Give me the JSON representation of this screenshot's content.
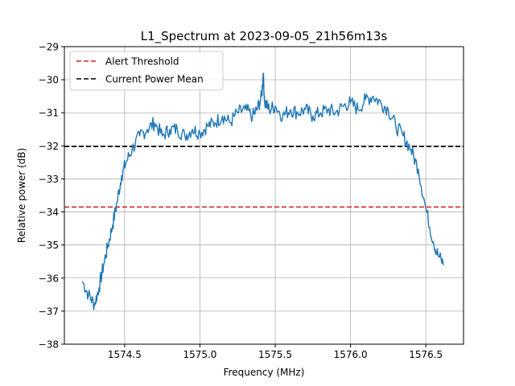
{
  "chart_data": {
    "type": "line",
    "title": "L1_Spectrum at 2023-09-05_21h56m13s",
    "xlabel": "Frequency (MHz)",
    "ylabel": "Relative power (dB)",
    "xlim": [
      1574.1,
      1576.75
    ],
    "ylim": [
      -38,
      -29
    ],
    "xticks": [
      1574.5,
      1575.0,
      1575.5,
      1576.0,
      1576.5
    ],
    "xtick_labels": [
      "1574.5",
      "1575.0",
      "1575.5",
      "1576.0",
      "1576.5"
    ],
    "yticks": [
      -38,
      -37,
      -36,
      -35,
      -34,
      -33,
      -32,
      -31,
      -30,
      -29
    ],
    "ytick_labels": [
      "−38",
      "−37",
      "−36",
      "−35",
      "−34",
      "−33",
      "−32",
      "−31",
      "−30",
      "−29"
    ],
    "grid": true,
    "legend_position": "top-left",
    "series": [
      {
        "name": "",
        "color": "#1f77b4",
        "x": [
          1574.22,
          1574.26,
          1574.3,
          1574.33,
          1574.36,
          1574.39,
          1574.42,
          1574.45,
          1574.48,
          1574.51,
          1574.55,
          1574.6,
          1574.65,
          1574.7,
          1574.75,
          1574.8,
          1574.85,
          1574.9,
          1574.95,
          1575.0,
          1575.05,
          1575.1,
          1575.15,
          1575.2,
          1575.25,
          1575.3,
          1575.35,
          1575.38,
          1575.41,
          1575.42,
          1575.43,
          1575.46,
          1575.5,
          1575.55,
          1575.6,
          1575.65,
          1575.7,
          1575.75,
          1575.8,
          1575.85,
          1575.9,
          1575.95,
          1576.0,
          1576.05,
          1576.1,
          1576.15,
          1576.2,
          1576.25,
          1576.3,
          1576.35,
          1576.4,
          1576.45,
          1576.5,
          1576.55,
          1576.58,
          1576.62
        ],
        "y": [
          -36.1,
          -36.5,
          -36.8,
          -36.3,
          -35.6,
          -35.0,
          -34.4,
          -33.7,
          -32.9,
          -32.5,
          -32.1,
          -31.7,
          -31.5,
          -31.3,
          -31.7,
          -31.5,
          -31.5,
          -31.7,
          -31.5,
          -31.6,
          -31.4,
          -31.3,
          -31.1,
          -31.3,
          -31.0,
          -30.9,
          -31.1,
          -30.9,
          -30.5,
          -29.8,
          -30.7,
          -30.9,
          -30.8,
          -31.1,
          -30.9,
          -31.0,
          -30.9,
          -31.1,
          -31.0,
          -30.9,
          -31.0,
          -30.8,
          -30.7,
          -30.9,
          -30.6,
          -30.5,
          -30.7,
          -30.9,
          -31.4,
          -31.7,
          -32.1,
          -32.7,
          -33.9,
          -34.9,
          -35.3,
          -35.6
        ]
      }
    ],
    "reference_lines": [
      {
        "name": "Alert Threshold",
        "y": -33.85,
        "color": "#d62728",
        "style": "dashed"
      },
      {
        "name": "Current Power Mean",
        "y": -32.02,
        "color": "#000000",
        "style": "dashed"
      }
    ]
  }
}
